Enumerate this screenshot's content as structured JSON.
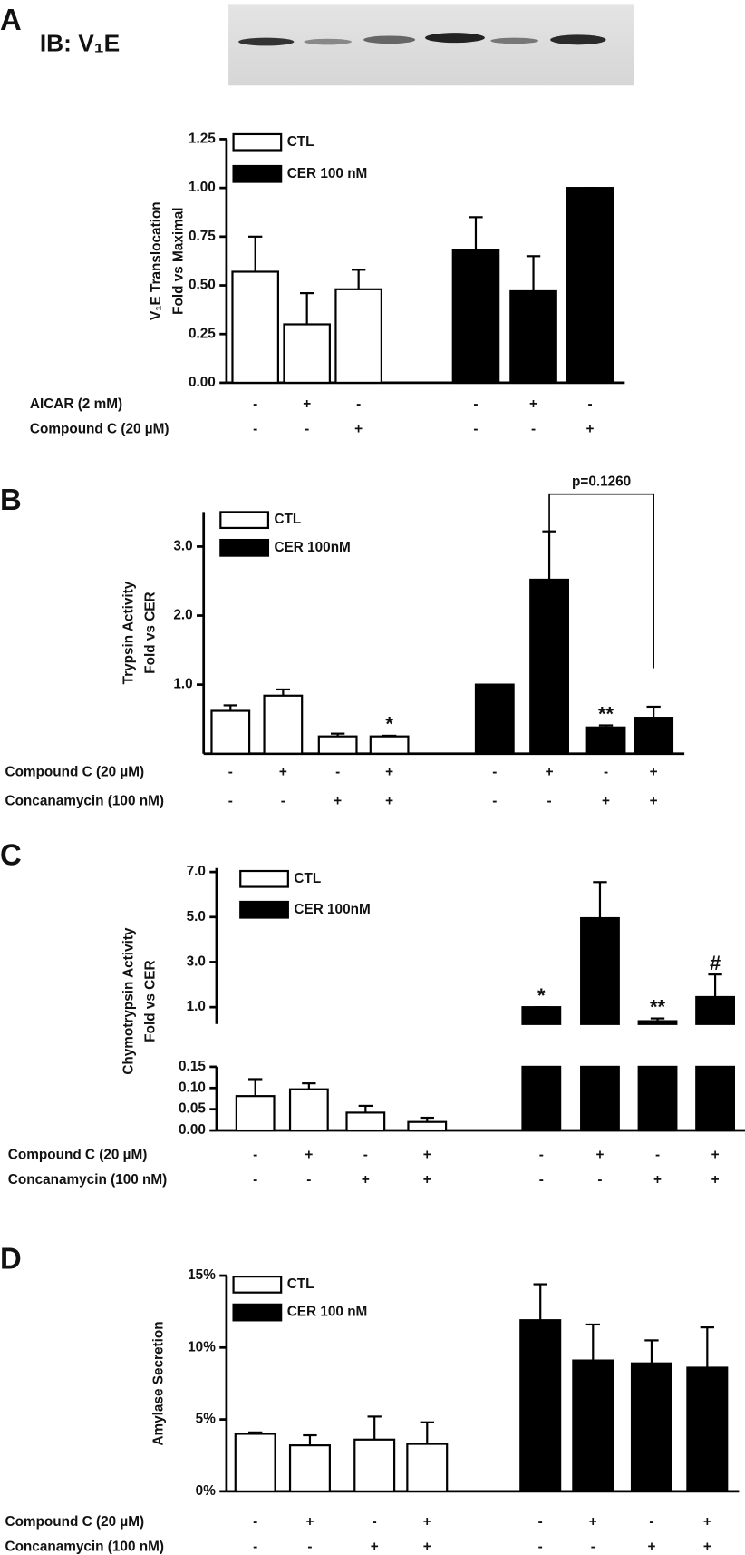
{
  "chart_data": [
    {
      "type": "bar",
      "panel": "A",
      "image_label": "IB: V₁E",
      "ylabel": [
        "V₁E  Translocation",
        "Fold vs Maximal"
      ],
      "ylim": [
        0,
        1.25
      ],
      "yticks": [
        {
          "value": 0,
          "label": "0.00"
        },
        {
          "value": 0.25,
          "label": "0.25"
        },
        {
          "value": 0.5,
          "label": "0.50"
        },
        {
          "value": 0.75,
          "label": "0.75"
        },
        {
          "value": 1,
          "label": "1.00"
        },
        {
          "value": 1.25,
          "label": "1.25"
        }
      ],
      "series": [
        {
          "name": "CTL",
          "color": "#ffffff",
          "values": [
            0.57,
            0.3,
            0.48
          ],
          "errors": [
            0.18,
            0.16,
            0.1
          ]
        },
        {
          "name": "CER 100 nM",
          "color": "#000000",
          "values": [
            0.68,
            0.47,
            1.0
          ],
          "errors": [
            0.17,
            0.18,
            0
          ]
        }
      ],
      "conditions": [
        {
          "label": "AICAR (2 mM)",
          "signs": [
            "-",
            "+",
            "-",
            "-",
            "+",
            "-"
          ]
        },
        {
          "label": "Compound C (20 µM)",
          "signs": [
            "-",
            "-",
            "+",
            "-",
            "-",
            "+"
          ]
        }
      ]
    },
    {
      "type": "bar",
      "panel": "B",
      "ylabel": [
        "Trypsin  Activity",
        "Fold vs CER"
      ],
      "ylim": [
        0,
        3.5
      ],
      "yticks": [
        {
          "value": 1,
          "label": "1.0"
        },
        {
          "value": 2,
          "label": "2.0"
        },
        {
          "value": 3,
          "label": "3.0"
        }
      ],
      "series": [
        {
          "name": "CTL",
          "color": "#ffffff",
          "values": [
            0.62,
            0.84,
            0.25,
            0.25
          ],
          "errors": [
            0.08,
            0.09,
            0.04,
            0.01
          ],
          "significance": [
            null,
            null,
            null,
            "*"
          ]
        },
        {
          "name": "CER 100nM",
          "color": "#000000",
          "values": [
            1.0,
            2.52,
            0.38,
            0.52
          ],
          "errors": [
            0,
            0.7,
            0.03,
            0.16
          ],
          "significance": [
            null,
            null,
            "**",
            null
          ]
        }
      ],
      "bracket": "p=0.1260",
      "conditions": [
        {
          "label": "Compound C (20 µM)",
          "signs": [
            "-",
            "+",
            "-",
            "+",
            "-",
            "+",
            "-",
            "+"
          ]
        },
        {
          "label": "Concanamycin (100 nM)",
          "signs": [
            "-",
            "-",
            "+",
            "+",
            "-",
            "-",
            "+",
            "+"
          ]
        }
      ]
    },
    {
      "type": "broken_bar",
      "panel": "C",
      "ylabel": [
        "Chymotrypsin  Activity",
        "Fold vs CER"
      ],
      "ylim": [
        0,
        0.15
      ],
      "yticks": [
        {
          "value": 0,
          "label": "0.00"
        },
        {
          "value": 0.05,
          "label": "0.05"
        },
        {
          "value": 0.1,
          "label": "0.10"
        },
        {
          "value": 0.15,
          "label": "0.15"
        }
      ],
      "y_upper_lim": [
        0.25,
        7.0
      ],
      "y_upper_ticks": [
        {
          "value": 1,
          "label": "1.0"
        },
        {
          "value": 3,
          "label": "3.0"
        },
        {
          "value": 5,
          "label": "5.0"
        },
        {
          "value": 7,
          "label": "7.0"
        }
      ],
      "series": [
        {
          "name": "CTL",
          "color": "#ffffff",
          "values": [
            0.081,
            0.097,
            0.042,
            0.02
          ],
          "errors": [
            0.04,
            0.014,
            0.016,
            0.01
          ]
        },
        {
          "name": "CER 100nM",
          "color": "#000000",
          "values": [
            1.0,
            4.95,
            0.38,
            1.45
          ],
          "errors": [
            0,
            1.6,
            0.12,
            1.0
          ],
          "significance": [
            "*",
            null,
            "**",
            "#"
          ]
        }
      ],
      "conditions": [
        {
          "label": "Compound C (20 µM)",
          "signs": [
            "-",
            "+",
            "-",
            "+",
            "-",
            "+",
            "-",
            "+"
          ]
        },
        {
          "label": "Concanamycin (100 nM)",
          "signs": [
            "-",
            "-",
            "+",
            "+",
            "-",
            "-",
            "+",
            "+"
          ]
        }
      ]
    },
    {
      "type": "bar",
      "panel": "D",
      "ylabel": [
        "Amylase  Secretion"
      ],
      "ylim": [
        0,
        15
      ],
      "yticks": [
        {
          "value": 0,
          "label": "0%"
        },
        {
          "value": 5,
          "label": "5%"
        },
        {
          "value": 10,
          "label": "10%"
        },
        {
          "value": 15,
          "label": "15%"
        }
      ],
      "series": [
        {
          "name": "CTL",
          "color": "#ffffff",
          "values": [
            4.0,
            3.2,
            3.6,
            3.3
          ],
          "errors": [
            0.1,
            0.7,
            1.6,
            1.5
          ]
        },
        {
          "name": "CER 100 nM",
          "color": "#000000",
          "values": [
            11.9,
            9.1,
            8.9,
            8.6
          ],
          "errors": [
            2.5,
            2.5,
            1.6,
            2.8
          ]
        }
      ],
      "conditions": [
        {
          "label": "Compound C (20 µM)",
          "signs": [
            "-",
            "+",
            "-",
            "+",
            "-",
            "+",
            "-",
            "+"
          ]
        },
        {
          "label": "Concanamycin (100 nM)",
          "signs": [
            "-",
            "-",
            "+",
            "+",
            "-",
            "-",
            "+",
            "+"
          ]
        }
      ]
    }
  ]
}
